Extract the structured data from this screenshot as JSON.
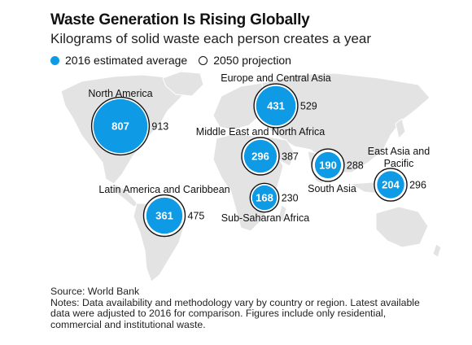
{
  "title": "Waste Generation Is Rising Globally",
  "subtitle": "Kilograms of solid waste each person creates a year",
  "legend": {
    "estimate": "2016 estimated average",
    "projection": "2050 projection"
  },
  "colors": {
    "estimate_fill": "#0f9ae6",
    "projection_stroke": "#111111",
    "map_land": "#e3e3e3"
  },
  "chart_data": {
    "type": "bubble-map",
    "title": "Waste Generation Is Rising Globally",
    "subtitle": "Kilograms of solid waste each person creates a year",
    "series": [
      {
        "name": "2016 estimated average"
      },
      {
        "name": "2050 projection"
      }
    ],
    "regions": [
      {
        "name": "North America",
        "estimate_2016": 807,
        "projection_2050": 913
      },
      {
        "name": "Europe and Central Asia",
        "estimate_2016": 431,
        "projection_2050": 529
      },
      {
        "name": "Middle East and North Africa",
        "estimate_2016": 296,
        "projection_2050": 387
      },
      {
        "name": "South Asia",
        "estimate_2016": 190,
        "projection_2050": 288
      },
      {
        "name": "East Asia and Pacific",
        "estimate_2016": 204,
        "projection_2050": 296
      },
      {
        "name": "Latin America and Caribbean",
        "estimate_2016": 361,
        "projection_2050": 475
      },
      {
        "name": "Sub-Saharan Africa",
        "estimate_2016": 168,
        "projection_2050": 230
      }
    ]
  },
  "footer": {
    "source": "Source: World Bank",
    "notes": "Notes: Data availability and methodology vary by country or region. Latest available data were adjusted to 2016 for comparison. Figures include only residential, commercial and institutional waste."
  }
}
